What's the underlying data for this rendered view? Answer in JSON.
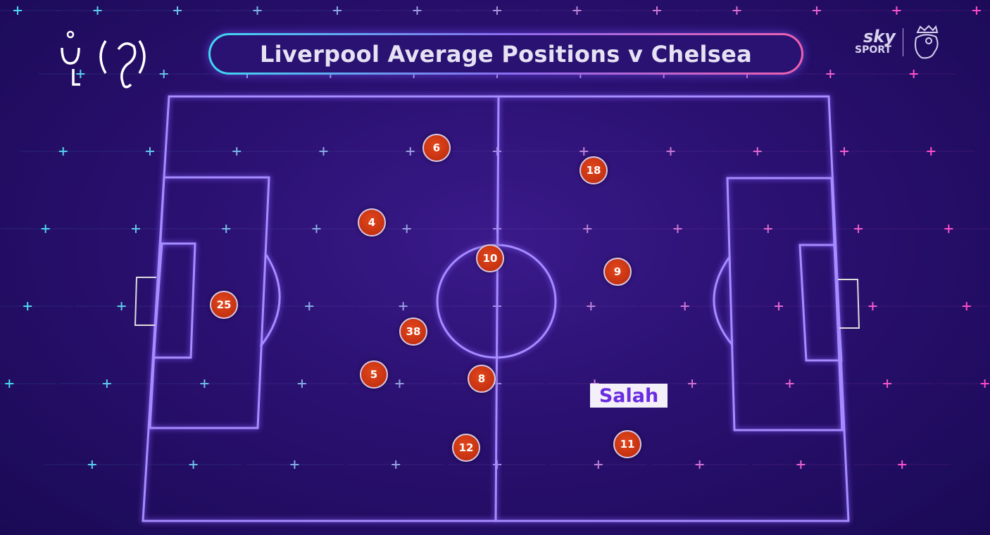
{
  "title": "Liverpool Average Positions v Chelsea",
  "broadcaster": {
    "line1": "sky",
    "line2": "SPORT",
    "league_logo": "premier-league-lion-icon"
  },
  "watermark": "channel-watermark-glyphs",
  "highlight_label": "Salah",
  "colors": {
    "player_marker": "#c8320f",
    "pitch_lines": "#a58cff",
    "label_text": "#6a2ce0"
  },
  "players": [
    {
      "number": "6"
    },
    {
      "number": "18"
    },
    {
      "number": "4"
    },
    {
      "number": "10"
    },
    {
      "number": "9"
    },
    {
      "number": "25"
    },
    {
      "number": "38"
    },
    {
      "number": "5"
    },
    {
      "number": "8"
    },
    {
      "number": "12"
    },
    {
      "number": "11"
    }
  ]
}
